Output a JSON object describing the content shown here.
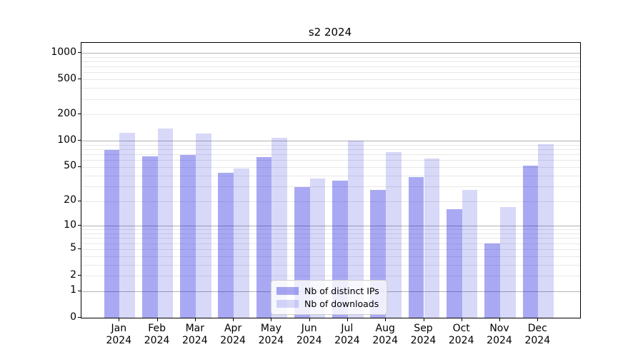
{
  "chart_data": {
    "type": "bar",
    "title": "s2 2024",
    "scale": "log1p",
    "categories": [
      "Jan",
      "Feb",
      "Mar",
      "Apr",
      "May",
      "Jun",
      "Jul",
      "Aug",
      "Sep",
      "Oct",
      "Nov",
      "Dec"
    ],
    "x_tick_year": "2024",
    "series": [
      {
        "name": "Nb of distinct IPs",
        "color": "rgba(10,10,220,0.35)",
        "values": [
          79,
          66,
          69,
          43,
          65,
          29,
          35,
          27,
          38,
          16,
          6,
          52
        ]
      },
      {
        "name": "Nb of downloads",
        "color": "rgba(10,10,220,0.16)",
        "values": [
          124,
          138,
          121,
          48,
          109,
          37,
          100,
          75,
          63,
          27,
          17,
          92
        ]
      }
    ],
    "y_ticks": [
      0,
      1,
      2,
      5,
      10,
      20,
      50,
      100,
      200,
      500,
      1000
    ],
    "ylim": [
      0,
      1300
    ],
    "grid": true,
    "legend_position": "lower-center-inside",
    "colors": {
      "major_gridline": "#b2b2b2",
      "minor_gridline": "#e8e8e8",
      "spine": "#000000",
      "legend_border": "#cccccc",
      "legend_background": "rgba(255,255,255,0.8)"
    }
  }
}
